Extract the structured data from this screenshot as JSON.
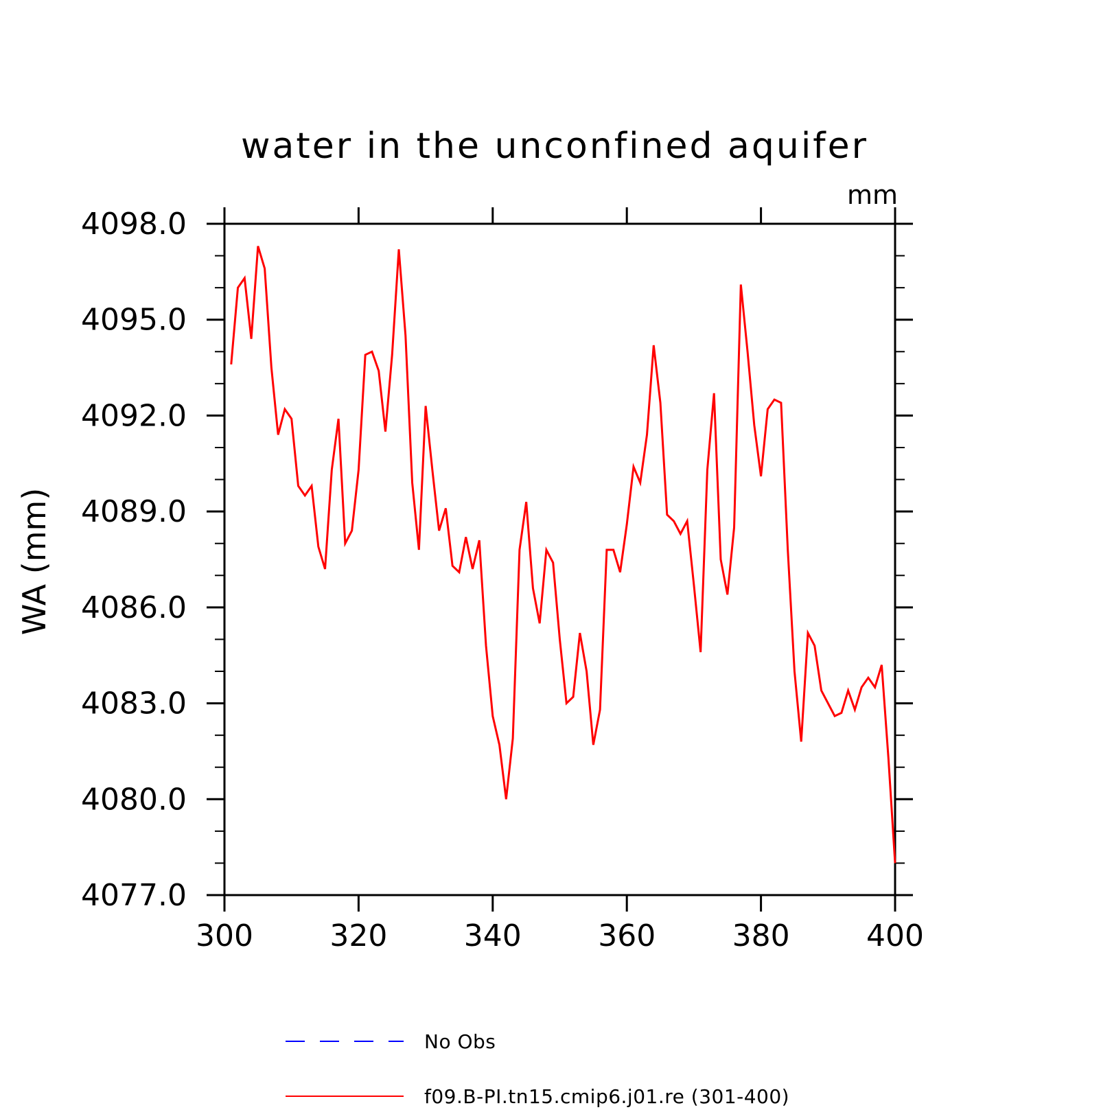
{
  "chart_data": {
    "type": "line",
    "title": "water in the unconfined aquifer",
    "units_label": "mm",
    "ylabel": "WA  (mm)",
    "xlabel": "",
    "xlim": [
      300,
      400
    ],
    "ylim": [
      4077,
      4098
    ],
    "x_ticks": [
      300,
      320,
      340,
      360,
      380,
      400
    ],
    "x_tick_labels": [
      "300",
      "320",
      "340",
      "360",
      "380",
      "400"
    ],
    "y_ticks": [
      4077,
      4080,
      4083,
      4086,
      4089,
      4092,
      4095,
      4098
    ],
    "y_tick_labels": [
      "4077.0",
      "4080.0",
      "4083.0",
      "4086.0",
      "4089.0",
      "4092.0",
      "4095.0",
      "4098.0"
    ],
    "grid": false,
    "legend_position": "bottom",
    "series": [
      {
        "name": "No Obs",
        "color": "#0000ff",
        "dash": "dashed",
        "x": [],
        "values": []
      },
      {
        "name": "f09.B-PI.tn15.cmip6.j01.re (301-400)",
        "color": "#ff0000",
        "dash": "solid",
        "x": [
          301,
          302,
          303,
          304,
          305,
          306,
          307,
          308,
          309,
          310,
          311,
          312,
          313,
          314,
          315,
          316,
          317,
          318,
          319,
          320,
          321,
          322,
          323,
          324,
          325,
          326,
          327,
          328,
          329,
          330,
          331,
          332,
          333,
          334,
          335,
          336,
          337,
          338,
          339,
          340,
          341,
          342,
          343,
          344,
          345,
          346,
          347,
          348,
          349,
          350,
          351,
          352,
          353,
          354,
          355,
          356,
          357,
          358,
          359,
          360,
          361,
          362,
          363,
          364,
          365,
          366,
          367,
          368,
          369,
          370,
          371,
          372,
          373,
          374,
          375,
          376,
          377,
          378,
          379,
          380,
          381,
          382,
          383,
          384,
          385,
          386,
          387,
          388,
          389,
          390,
          391,
          392,
          393,
          394,
          395,
          396,
          397,
          398,
          399,
          400
        ],
        "values": [
          4093.6,
          4096.0,
          4096.3,
          4094.4,
          4097.3,
          4096.6,
          4093.5,
          4091.4,
          4092.2,
          4091.9,
          4089.8,
          4089.5,
          4089.8,
          4087.9,
          4087.2,
          4090.3,
          4091.9,
          4088.0,
          4088.4,
          4090.3,
          4093.9,
          4094.0,
          4093.4,
          4091.5,
          4093.9,
          4097.2,
          4094.5,
          4089.9,
          4087.8,
          4092.3,
          4090.3,
          4088.4,
          4089.1,
          4087.3,
          4087.1,
          4088.2,
          4087.2,
          4088.1,
          4084.8,
          4082.6,
          4081.7,
          4080.0,
          4081.9,
          4087.8,
          4089.3,
          4086.6,
          4085.5,
          4087.8,
          4087.4,
          4085.0,
          4083.0,
          4083.2,
          4085.2,
          4084.0,
          4081.7,
          4082.8,
          4087.8,
          4087.8,
          4087.1,
          4088.6,
          4090.4,
          4089.9,
          4091.4,
          4094.2,
          4092.4,
          4088.9,
          4088.7,
          4088.3,
          4088.7,
          4086.7,
          4084.6,
          4090.3,
          4092.7,
          4087.5,
          4086.4,
          4088.5,
          4096.1,
          4094.0,
          4091.7,
          4090.1,
          4092.2,
          4092.5,
          4092.4,
          4087.8,
          4084.0,
          4081.8,
          4085.2,
          4084.8,
          4083.4,
          4083.0,
          4082.6,
          4082.7,
          4083.4,
          4082.8,
          4083.5,
          4083.8,
          4083.5,
          4084.2,
          4081.3,
          4078.0
        ]
      }
    ]
  }
}
